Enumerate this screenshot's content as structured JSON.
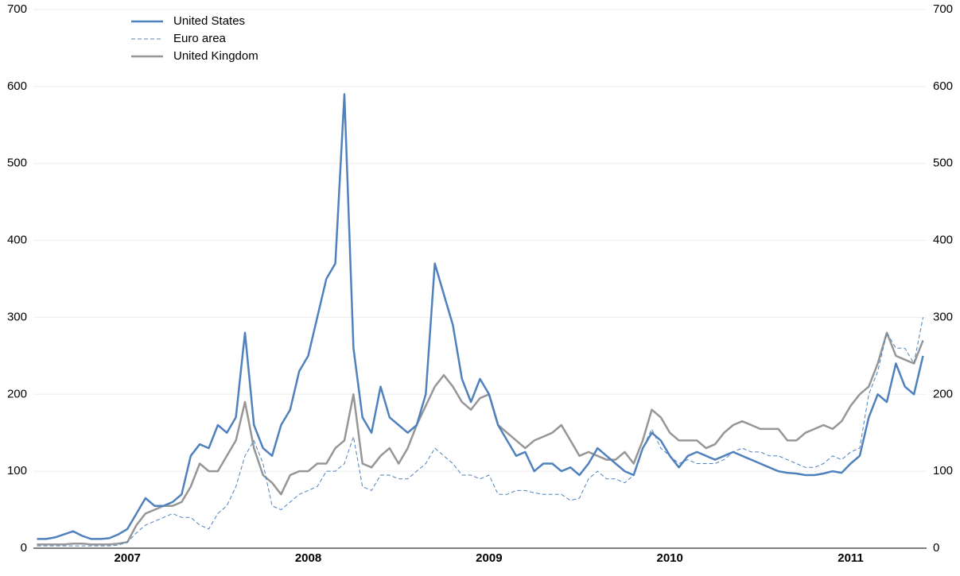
{
  "chart_data": {
    "type": "line",
    "x": [
      2007,
      2007.05,
      2007.1,
      2007.15,
      2007.2,
      2007.25,
      2007.3,
      2007.35,
      2007.4,
      2007.45,
      2007.5,
      2007.55,
      2007.6,
      2007.65,
      2007.7,
      2007.75,
      2007.8,
      2007.85,
      2007.9,
      2007.95,
      2008,
      2008.05,
      2008.1,
      2008.15,
      2008.2,
      2008.25,
      2008.3,
      2008.35,
      2008.4,
      2008.45,
      2008.5,
      2008.55,
      2008.6,
      2008.65,
      2008.7,
      2008.75,
      2008.8,
      2008.85,
      2008.9,
      2008.95,
      2009,
      2009.05,
      2009.1,
      2009.15,
      2009.2,
      2009.25,
      2009.3,
      2009.35,
      2009.4,
      2009.45,
      2009.5,
      2009.55,
      2009.6,
      2009.65,
      2009.7,
      2009.75,
      2009.8,
      2009.85,
      2009.9,
      2009.95,
      2010,
      2010.05,
      2010.1,
      2010.15,
      2010.2,
      2010.25,
      2010.3,
      2010.35,
      2010.4,
      2010.45,
      2010.5,
      2010.55,
      2010.6,
      2010.65,
      2010.7,
      2010.75,
      2010.8,
      2010.85,
      2010.9,
      2010.95,
      2011,
      2011.05,
      2011.1,
      2011.15,
      2011.2,
      2011.25,
      2011.3,
      2011.35,
      2011.4,
      2011.45,
      2011.5,
      2011.55,
      2011.6,
      2011.65,
      2011.7,
      2011.75,
      2011.8,
      2011.85,
      2011.9
    ],
    "series": [
      {
        "name": "United States",
        "color": "#4f81bd",
        "line_style": "solid",
        "values": [
          12,
          12,
          14,
          18,
          22,
          16,
          12,
          12,
          13,
          18,
          25,
          45,
          65,
          55,
          55,
          60,
          70,
          120,
          135,
          130,
          160,
          150,
          170,
          280,
          160,
          130,
          120,
          160,
          180,
          230,
          250,
          300,
          350,
          370,
          590,
          260,
          170,
          150,
          210,
          170,
          160,
          150,
          160,
          200,
          370,
          330,
          290,
          220,
          190,
          220,
          200,
          160,
          140,
          120,
          125,
          100,
          110,
          110,
          100,
          105,
          95,
          110,
          130,
          120,
          110,
          100,
          95,
          130,
          150,
          140,
          120,
          105,
          120,
          125,
          120,
          115,
          120,
          125,
          120,
          115,
          110,
          105,
          100,
          98,
          97,
          95,
          95,
          97,
          100,
          98,
          110,
          120,
          170,
          200,
          190,
          240,
          210,
          200,
          250
        ]
      },
      {
        "name": "Euro area",
        "color": "#4f81bd",
        "line_style": "dashed",
        "values": [
          3,
          3,
          3,
          3,
          3,
          3,
          3,
          3,
          3,
          4,
          8,
          20,
          30,
          35,
          40,
          45,
          40,
          40,
          30,
          25,
          45,
          55,
          80,
          120,
          140,
          110,
          55,
          50,
          60,
          70,
          75,
          80,
          100,
          100,
          110,
          145,
          80,
          75,
          95,
          95,
          90,
          90,
          100,
          110,
          130,
          120,
          110,
          95,
          95,
          90,
          95,
          70,
          70,
          75,
          75,
          72,
          70,
          70,
          70,
          62,
          65,
          90,
          100,
          90,
          90,
          85,
          95,
          130,
          155,
          130,
          120,
          110,
          115,
          110,
          110,
          110,
          115,
          125,
          130,
          125,
          125,
          120,
          120,
          115,
          110,
          105,
          105,
          110,
          120,
          115,
          125,
          130,
          200,
          230,
          280,
          260,
          260,
          240,
          300
        ]
      },
      {
        "name": "United Kingdom",
        "color": "#969696",
        "line_style": "solid",
        "values": [
          5,
          5,
          5,
          5,
          6,
          6,
          5,
          5,
          5,
          6,
          8,
          30,
          45,
          50,
          55,
          55,
          60,
          80,
          110,
          100,
          100,
          120,
          140,
          190,
          130,
          95,
          85,
          70,
          95,
          100,
          100,
          110,
          110,
          130,
          140,
          200,
          110,
          105,
          120,
          130,
          110,
          130,
          160,
          185,
          210,
          225,
          210,
          190,
          180,
          195,
          200,
          160,
          150,
          140,
          130,
          140,
          145,
          150,
          160,
          140,
          120,
          125,
          120,
          115,
          115,
          125,
          110,
          140,
          180,
          170,
          150,
          140,
          140,
          140,
          130,
          135,
          150,
          160,
          165,
          160,
          155,
          155,
          155,
          140,
          140,
          150,
          155,
          160,
          155,
          165,
          185,
          200,
          210,
          240,
          280,
          250,
          245,
          240,
          270
        ]
      }
    ],
    "xlim": [
      2006.98,
      2011.92
    ],
    "xticks": [
      {
        "value": 2007.5,
        "label": "2007"
      },
      {
        "value": 2008.5,
        "label": "2008"
      },
      {
        "value": 2009.5,
        "label": "2009"
      },
      {
        "value": 2010.5,
        "label": "2010"
      },
      {
        "value": 2011.5,
        "label": "2011"
      }
    ],
    "ylim": [
      0,
      700
    ],
    "yticks": [
      0,
      100,
      200,
      300,
      400,
      500,
      600,
      700
    ],
    "y2lim": [
      0,
      700
    ],
    "y2ticks": [
      0,
      100,
      200,
      300,
      400,
      500,
      600,
      700
    ],
    "grid": true,
    "legend": "top-left"
  }
}
